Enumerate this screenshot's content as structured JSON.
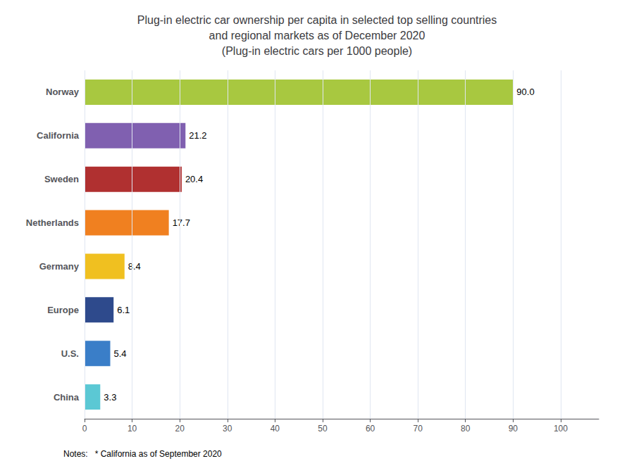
{
  "chart_data": {
    "type": "bar",
    "orientation": "horizontal",
    "title": "Plug-in electric car ownership per capita in selected top selling countries\nand regional markets as of December 2020\n(Plug-in electric cars per 1000 people)",
    "categories": [
      "Norway",
      "California",
      "Sweden",
      "Netherlands",
      "Germany",
      "Europe",
      "U.S.",
      "China"
    ],
    "values": [
      90.0,
      21.2,
      20.4,
      17.7,
      8.4,
      6.1,
      5.4,
      3.3
    ],
    "value_labels": [
      "90.0",
      "21.2",
      "20.4",
      "17.7",
      "8.4",
      "6.1",
      "5.4",
      "3.3"
    ],
    "colors": [
      "#a8c840",
      "#8060b0",
      "#b03030",
      "#f08020",
      "#f0c020",
      "#2e4a8c",
      "#3a7ec8",
      "#5bc8d4"
    ],
    "xlim": [
      0,
      108
    ],
    "xticks": [
      0,
      10,
      20,
      30,
      40,
      50,
      60,
      70,
      80,
      90,
      100
    ],
    "grid": true,
    "data_labels": true,
    "annotation": "Notes:   * California as of September 2020"
  }
}
